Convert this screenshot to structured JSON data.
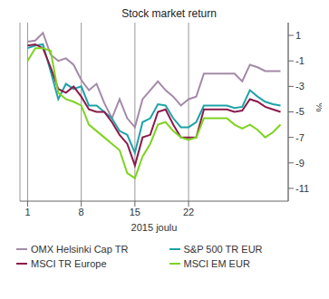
{
  "chart_data": {
    "type": "line",
    "title": "Stock market return",
    "x_label": "2015 joulu",
    "y_label": "%",
    "x": [
      1,
      2,
      3,
      4,
      5,
      6,
      7,
      8,
      9,
      10,
      11,
      12,
      13,
      14,
      15,
      16,
      17,
      18,
      19,
      20,
      21,
      22,
      23,
      24,
      25,
      26,
      27,
      28,
      29,
      30,
      31,
      32,
      33,
      34
    ],
    "xlim": [
      0,
      35
    ],
    "xticks": [
      1,
      8,
      15,
      22
    ],
    "ylim": [
      -12,
      2
    ],
    "yticks": [
      1,
      -1,
      -3,
      -5,
      -7,
      -9,
      -11
    ],
    "grid": true,
    "legend": "bottom",
    "series": [
      {
        "name": "OMX Helsinki Cap TR",
        "color": "#a48aa8",
        "values": [
          0.5,
          0.6,
          1.2,
          -0.5,
          -1.0,
          -0.8,
          -1.3,
          -2.5,
          -3.3,
          -2.8,
          -4.3,
          -5.5,
          -4.0,
          -5.5,
          -6.2,
          -4.0,
          -3.3,
          -2.6,
          -3.3,
          -3.8,
          -4.5,
          -4.0,
          -3.8,
          -2.0,
          -2.0,
          -2.0,
          -2.0,
          -2.0,
          -2.6,
          -1.3,
          -1.5,
          -1.8,
          -1.8,
          -1.8
        ]
      },
      {
        "name": "S&P 500 TR EUR",
        "color": "#1ea3a8",
        "values": [
          0.0,
          0.2,
          0.3,
          -1.8,
          -4.0,
          -2.8,
          -3.2,
          -3.0,
          -4.5,
          -4.5,
          -5.0,
          -5.5,
          -6.5,
          -6.8,
          -8.2,
          -5.8,
          -5.5,
          -4.4,
          -4.5,
          -5.5,
          -6.2,
          -6.2,
          -5.8,
          -4.5,
          -4.5,
          -4.5,
          -4.5,
          -4.7,
          -4.6,
          -3.3,
          -3.8,
          -4.2,
          -4.4,
          -4.5
        ]
      },
      {
        "name": "MSCI TR Europe",
        "color": "#8b1a4a",
        "values": [
          0.2,
          0.3,
          0.0,
          -1.5,
          -3.2,
          -3.5,
          -3.0,
          -3.8,
          -4.8,
          -5.0,
          -5.0,
          -5.8,
          -6.8,
          -7.5,
          -9.2,
          -7.0,
          -6.8,
          -5.0,
          -4.8,
          -6.0,
          -7.0,
          -7.0,
          -7.0,
          -4.8,
          -4.8,
          -4.8,
          -4.8,
          -5.0,
          -4.9,
          -4.0,
          -4.2,
          -4.6,
          -4.8,
          -5.0
        ]
      },
      {
        "name": "MSCI EM EUR",
        "color": "#7ed321",
        "values": [
          -1.0,
          0.0,
          0.0,
          -0.2,
          -3.5,
          -4.0,
          -4.2,
          -4.5,
          -6.0,
          -6.5,
          -7.0,
          -7.5,
          -8.0,
          -9.8,
          -10.2,
          -8.5,
          -7.5,
          -6.0,
          -5.8,
          -6.5,
          -7.0,
          -7.2,
          -7.0,
          -5.5,
          -5.5,
          -5.5,
          -5.5,
          -6.0,
          -6.3,
          -6.0,
          -6.4,
          -7.0,
          -6.6,
          -6.0
        ]
      }
    ]
  }
}
